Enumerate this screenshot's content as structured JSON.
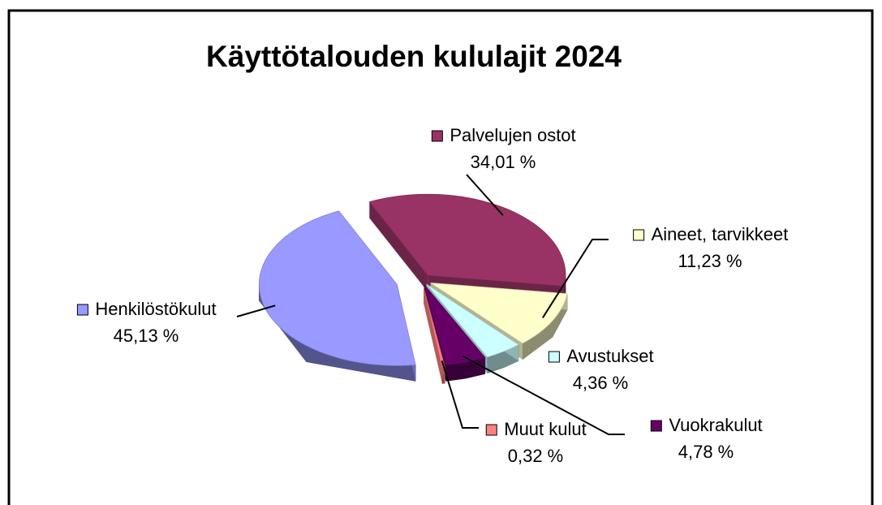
{
  "chart_data": {
    "type": "pie",
    "title": "Käyttötalouden kululajit 2024",
    "categories": [
      "Palvelujen ostot",
      "Aineet, tarvikkeet",
      "Avustukset",
      "Vuokrakulut",
      "Muut kulut",
      "Henkilöstökulut"
    ],
    "values": [
      34.01,
      11.23,
      4.36,
      4.78,
      0.32,
      45.13
    ],
    "value_labels": [
      "34,01 %",
      "11,23 %",
      "4,36 %",
      "4,78 %",
      "0,32 %",
      "45,13 %"
    ],
    "colors": [
      "#993366",
      "#ffffcc",
      "#ccffff",
      "#660066",
      "#ff8080",
      "#9999ff"
    ]
  }
}
